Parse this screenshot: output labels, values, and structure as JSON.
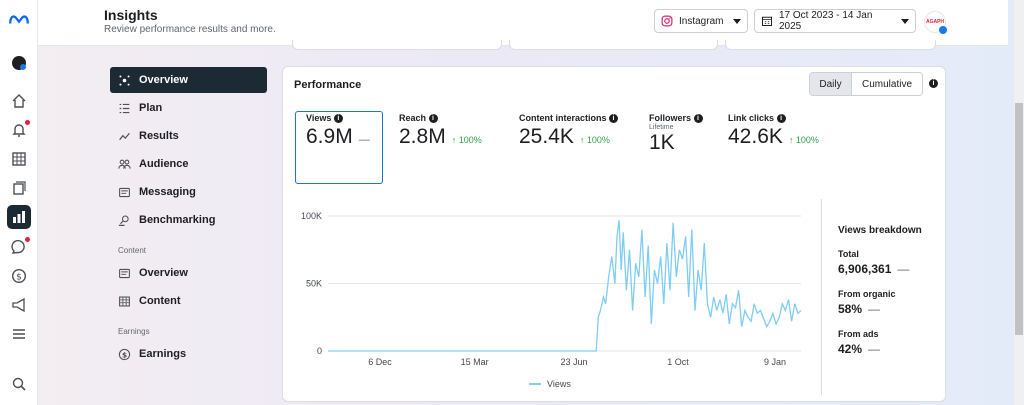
{
  "header": {
    "title": "Insights",
    "subtitle": "Review performance results and more.",
    "platform": "Instagram",
    "date_range": "17 Oct 2023 - 14 Jan 2025",
    "avatar_text": "AGAPH"
  },
  "sidebar": {
    "items": [
      {
        "label": "Overview",
        "icon": "overview-icon"
      },
      {
        "label": "Plan",
        "icon": "plan-icon"
      },
      {
        "label": "Results",
        "icon": "results-icon"
      },
      {
        "label": "Audience",
        "icon": "audience-icon"
      },
      {
        "label": "Messaging",
        "icon": "messaging-icon"
      },
      {
        "label": "Benchmarking",
        "icon": "benchmarking-icon"
      }
    ],
    "content_section": "Content",
    "content_items": [
      {
        "label": "Overview",
        "icon": "content-overview-icon"
      },
      {
        "label": "Content",
        "icon": "content-table-icon"
      }
    ],
    "earnings_section": "Earnings",
    "earnings_items": [
      {
        "label": "Earnings",
        "icon": "dollar-icon"
      }
    ]
  },
  "performance": {
    "title": "Performance",
    "toggle_daily": "Daily",
    "toggle_cumulative": "Cumulative",
    "metrics": [
      {
        "label": "Views",
        "value": "6.9M",
        "delta": "—"
      },
      {
        "label": "Reach",
        "value": "2.8M",
        "delta": "↑ 100%"
      },
      {
        "label": "Content interactions",
        "value": "25.4K",
        "delta": "↑ 100%"
      },
      {
        "label": "Followers",
        "sublabel": "Lifetime",
        "value": "1K",
        "delta": ""
      },
      {
        "label": "Link clicks",
        "value": "42.6K",
        "delta": "↑ 100%"
      }
    ]
  },
  "breakdown": {
    "title": "Views breakdown",
    "total_label": "Total",
    "total_value": "6,906,361",
    "organic_label": "From organic",
    "organic_value": "58%",
    "ads_label": "From ads",
    "ads_value": "42%",
    "dash": "—"
  },
  "chart_data": {
    "type": "line",
    "ylim": [
      0,
      100000
    ],
    "ytick_labels": [
      "100K",
      "50K",
      "0"
    ],
    "yticks": [
      100000,
      50000,
      0
    ],
    "xtick_labels": [
      "6 Dec",
      "15 Mar",
      "23 Jun",
      "1 Oct",
      "9 Jan"
    ],
    "series": [
      {
        "name": "Views",
        "color": "#7fcdf2",
        "x": [
          "2023-10-17",
          "2023-11-15",
          "2023-12-15",
          "2024-01-15",
          "2024-02-15",
          "2024-03-15",
          "2024-04-15",
          "2024-05-15",
          "2024-06-15",
          "2024-07-01",
          "2024-07-03",
          "2024-07-05",
          "2024-07-08",
          "2024-07-10",
          "2024-07-13",
          "2024-07-16",
          "2024-07-19",
          "2024-07-21",
          "2024-07-23",
          "2024-07-25",
          "2024-07-27",
          "2024-07-30",
          "2024-08-02",
          "2024-08-05",
          "2024-08-08",
          "2024-08-11",
          "2024-08-14",
          "2024-08-17",
          "2024-08-20",
          "2024-08-23",
          "2024-08-26",
          "2024-08-29",
          "2024-09-01",
          "2024-09-04",
          "2024-09-07",
          "2024-09-10",
          "2024-09-13",
          "2024-09-16",
          "2024-09-19",
          "2024-09-22",
          "2024-09-25",
          "2024-09-28",
          "2024-10-01",
          "2024-10-04",
          "2024-10-07",
          "2024-10-10",
          "2024-10-13",
          "2024-10-16",
          "2024-10-19",
          "2024-10-22",
          "2024-10-25",
          "2024-10-28",
          "2024-10-31",
          "2024-11-03",
          "2024-11-06",
          "2024-11-09",
          "2024-11-12",
          "2024-11-15",
          "2024-11-18",
          "2024-11-21",
          "2024-11-24",
          "2024-11-27",
          "2024-11-30",
          "2024-12-03",
          "2024-12-06",
          "2024-12-09",
          "2024-12-12",
          "2024-12-15",
          "2024-12-18",
          "2024-12-21",
          "2024-12-24",
          "2024-12-27",
          "2024-12-30",
          "2025-01-02",
          "2025-01-05",
          "2025-01-08",
          "2025-01-11",
          "2025-01-14"
        ],
        "values": [
          0,
          0,
          0,
          0,
          0,
          0,
          0,
          0,
          0,
          0,
          25000,
          30000,
          40000,
          35000,
          55000,
          70000,
          50000,
          85000,
          97000,
          60000,
          88000,
          45000,
          75000,
          30000,
          65000,
          55000,
          90000,
          40000,
          78000,
          20000,
          60000,
          50000,
          70000,
          35000,
          80000,
          45000,
          95000,
          55000,
          75000,
          68000,
          85000,
          40000,
          90000,
          30000,
          60000,
          45000,
          80000,
          35000,
          25000,
          40000,
          30000,
          38000,
          28000,
          42000,
          20000,
          35000,
          32000,
          45000,
          18000,
          30000,
          25000,
          22000,
          35000,
          28000,
          30000,
          24000,
          18000,
          22000,
          28000,
          20000,
          25000,
          35000,
          30000,
          38000,
          22000,
          35000,
          28000,
          30000
        ]
      }
    ],
    "legend": "bottom",
    "grid": true
  }
}
